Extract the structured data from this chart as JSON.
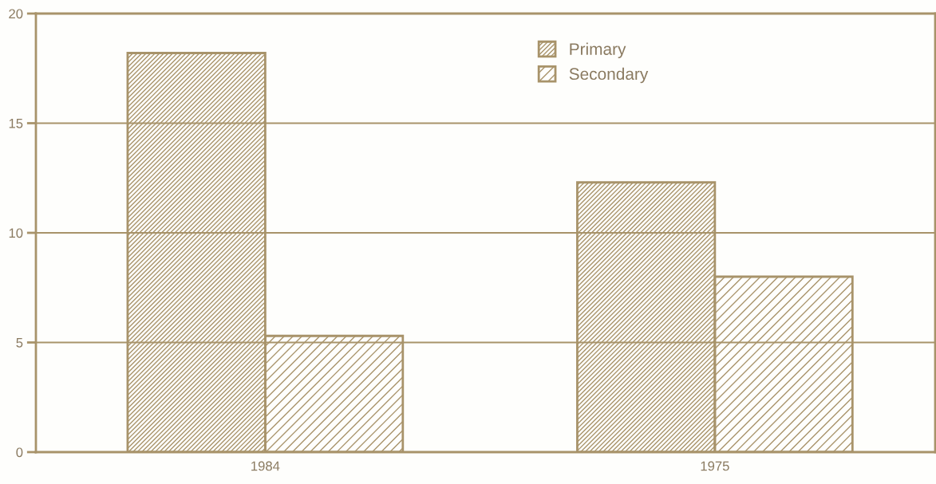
{
  "chart_data": {
    "type": "bar",
    "categories": [
      "1984",
      "1975"
    ],
    "series": [
      {
        "name": "Primary",
        "color": "#a8936a",
        "values": [
          18.2,
          12.3
        ]
      },
      {
        "name": "Secondary",
        "color": "#a8936a",
        "values": [
          5.3,
          8.0
        ]
      }
    ],
    "ylim": [
      0,
      20
    ],
    "yticks": [
      0,
      5,
      10,
      15,
      20
    ],
    "grid": "y",
    "legend": "top"
  }
}
